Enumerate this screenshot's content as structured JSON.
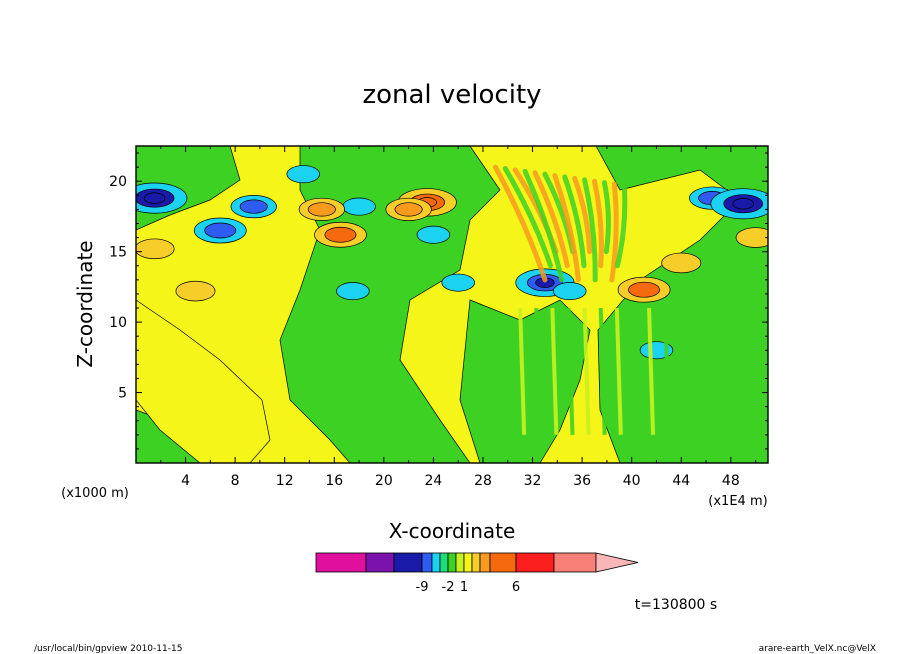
{
  "chart_data": {
    "type": "heatmap",
    "title": "zonal velocity",
    "xlabel": "X-coordinate",
    "ylabel": "Z-coordinate",
    "x_unit_label": "(x1E4 m)",
    "y_unit_label": "(x1000 m)",
    "time_label": "t=130800 s",
    "xlim": [
      0,
      51
    ],
    "ylim": [
      0,
      22.5
    ],
    "x_ticks": [
      "4",
      "8",
      "12",
      "16",
      "20",
      "24",
      "28",
      "32",
      "36",
      "40",
      "44",
      "48"
    ],
    "y_ticks": [
      "5",
      "10",
      "15",
      "20"
    ],
    "colorbar": {
      "labels": [
        "-9",
        "-2",
        "1",
        "6"
      ],
      "colors": [
        "#e0109e",
        "#7b12ad",
        "#1a1aa8",
        "#2e5cf0",
        "#1bd2f0",
        "#1be07a",
        "#3dd124",
        "#c6f21e",
        "#f5f51a",
        "#f7cd2a",
        "#f79a1e",
        "#f56a0e",
        "#fa1e1e",
        "#f98078",
        "#f8b6b6"
      ]
    },
    "field_features": [
      {
        "x": 1.5,
        "z": 18.8,
        "value": -7
      },
      {
        "x": 6.8,
        "z": 16.5,
        "value": -5
      },
      {
        "x": 9.5,
        "z": 18.2,
        "value": -4
      },
      {
        "x": 13.5,
        "z": 20.5,
        "value": -2
      },
      {
        "x": 18,
        "z": 18.2,
        "value": -2
      },
      {
        "x": 24,
        "z": 16.2,
        "value": -2
      },
      {
        "x": 17.5,
        "z": 12.2,
        "value": -2
      },
      {
        "x": 26,
        "z": 12.8,
        "value": -2
      },
      {
        "x": 33,
        "z": 12.8,
        "value": -6
      },
      {
        "x": 35,
        "z": 12.2,
        "value": -2
      },
      {
        "x": 42,
        "z": 8,
        "value": -2
      },
      {
        "x": 46.5,
        "z": 18.8,
        "value": -4
      },
      {
        "x": 49,
        "z": 18.4,
        "value": -7
      },
      {
        "x": 4.8,
        "z": 12.2,
        "value": 3
      },
      {
        "x": 1.5,
        "z": 15.2,
        "value": 3
      },
      {
        "x": 15,
        "z": 18,
        "value": 4
      },
      {
        "x": 16.5,
        "z": 16.2,
        "value": 5
      },
      {
        "x": 23.5,
        "z": 18.5,
        "value": 6
      },
      {
        "x": 22,
        "z": 18,
        "value": 4
      },
      {
        "x": 41,
        "z": 12.3,
        "value": 5
      },
      {
        "x": 44,
        "z": 14.2,
        "value": 3
      },
      {
        "x": 50,
        "z": 16,
        "value": 3
      }
    ]
  },
  "footer": {
    "left": "/usr/local/bin/gpview   2010-11-15",
    "right": "arare-earth_VelX.nc@VelX"
  }
}
